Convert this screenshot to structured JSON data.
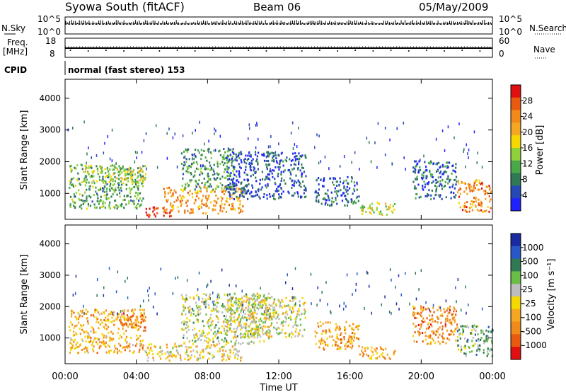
{
  "header": {
    "station": "Syowa South (fitACF)",
    "beam": "Beam 06",
    "date": "05/May/2009"
  },
  "top_panels": {
    "nsky_label": "N.Sky",
    "noise_ticks": [
      "10^5",
      "10^0"
    ],
    "nsearch_label": "N.Search",
    "freq_label": "Freq.",
    "freq_unit": "[MHz]",
    "freq_ticks": [
      "18",
      "8"
    ],
    "nave_ticks": [
      "60",
      "0"
    ],
    "nave_label": "Nave",
    "cpid_label": "CPID",
    "cpid_value": "normal (fast stereo) 153"
  },
  "colors": {
    "power": [
      "#1f22ff",
      "#2749b5",
      "#2f7a55",
      "#4aa84a",
      "#8fd13a",
      "#f5d800",
      "#f5a623",
      "#f08a1a",
      "#e85a10",
      "#e01010"
    ],
    "velocity": [
      "#1a2aa0",
      "#2858c8",
      "#2f7a55",
      "#6abd45",
      "#bdbdbd",
      "#f5d800",
      "#f5a623",
      "#f08a1a",
      "#e85a10",
      "#e01010"
    ]
  },
  "chart_data": [
    {
      "type": "heatmap",
      "name": "power-panel",
      "ylabel": "Slant Range [km]",
      "xlabel": "Time UT",
      "xlim": [
        "00:00",
        "24:00"
      ],
      "ylim": [
        180,
        4600
      ],
      "x_ticks": [
        "00:00",
        "04:00",
        "08:00",
        "12:00",
        "16:00",
        "20:00",
        "00:00"
      ],
      "y_ticks": [
        1000,
        2000,
        3000,
        4000
      ],
      "colorbar": {
        "label": "Power [dB]",
        "ticks": [
          "4",
          "8",
          "12",
          "16",
          "20",
          "24",
          "28"
        ]
      },
      "regions": [
        {
          "t": [
            0.2,
            4.5
          ],
          "r": [
            500,
            1900
          ],
          "level": 0.35
        },
        {
          "t": [
            1.0,
            4.5
          ],
          "r": [
            1300,
            1800
          ],
          "level": 0.5
        },
        {
          "t": [
            4.5,
            6.0
          ],
          "r": [
            250,
            550
          ],
          "level": 0.95
        },
        {
          "t": [
            5.5,
            10.0
          ],
          "r": [
            350,
            1200
          ],
          "level": 0.7
        },
        {
          "t": [
            6.5,
            9.5
          ],
          "r": [
            1100,
            2400
          ],
          "level": 0.3
        },
        {
          "t": [
            9.0,
            13.5
          ],
          "r": [
            800,
            2300
          ],
          "level": 0.15
        },
        {
          "t": [
            14.0,
            16.5
          ],
          "r": [
            600,
            1500
          ],
          "level": 0.2
        },
        {
          "t": [
            16.5,
            18.5
          ],
          "r": [
            300,
            700
          ],
          "level": 0.5
        },
        {
          "t": [
            19.5,
            22.0
          ],
          "r": [
            800,
            2000
          ],
          "level": 0.2
        },
        {
          "t": [
            22.0,
            24.0
          ],
          "r": [
            400,
            1400
          ],
          "level": 0.75
        }
      ]
    },
    {
      "type": "heatmap",
      "name": "velocity-panel",
      "ylabel": "Slant Range [km]",
      "xlabel": "Time UT",
      "xlim": [
        "00:00",
        "24:00"
      ],
      "ylim": [
        180,
        4600
      ],
      "x_ticks": [
        "00:00",
        "04:00",
        "08:00",
        "12:00",
        "16:00",
        "20:00",
        "00:00"
      ],
      "y_ticks": [
        1000,
        2000,
        3000,
        4000
      ],
      "colorbar": {
        "label": "Velocity [m s⁻¹]",
        "ticks": [
          "1000",
          "500",
          "100",
          "25",
          "-25",
          "-100",
          "-500",
          "-1000"
        ]
      },
      "regions": [
        {
          "t": [
            0.2,
            4.5
          ],
          "r": [
            500,
            1900
          ],
          "level": 0.65
        },
        {
          "t": [
            3.0,
            4.5
          ],
          "r": [
            1300,
            1800
          ],
          "level": 0.8
        },
        {
          "t": [
            4.5,
            10.0
          ],
          "r": [
            250,
            800
          ],
          "level": 0.55
        },
        {
          "t": [
            6.5,
            11.5
          ],
          "r": [
            800,
            2400
          ],
          "level": 0.45
        },
        {
          "t": [
            9.0,
            13.5
          ],
          "r": [
            1000,
            2300
          ],
          "level": 0.5
        },
        {
          "t": [
            14.0,
            16.5
          ],
          "r": [
            600,
            1500
          ],
          "level": 0.7
        },
        {
          "t": [
            16.5,
            18.5
          ],
          "r": [
            300,
            700
          ],
          "level": 0.7
        },
        {
          "t": [
            19.5,
            22.0
          ],
          "r": [
            800,
            2000
          ],
          "level": 0.75
        },
        {
          "t": [
            22.0,
            24.0
          ],
          "r": [
            400,
            1400
          ],
          "level": 0.35
        }
      ]
    }
  ]
}
